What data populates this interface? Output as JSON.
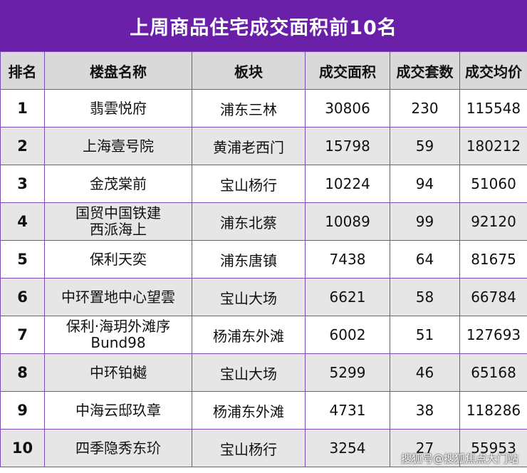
{
  "title": "上周商品住宅成交面积前10名",
  "headers": {
    "rank": "排名",
    "name": "楼盘名称",
    "area": "板块",
    "deal_area": "成交面积",
    "deal_units": "成交套数",
    "avg_price": "成交均价"
  },
  "rows": [
    {
      "rank": "1",
      "name": "翡雲悦府",
      "area": "浦东三林",
      "deal_area": "30806",
      "deal_units": "230",
      "avg_price": "115548"
    },
    {
      "rank": "2",
      "name": "上海壹号院",
      "area": "黄浦老西门",
      "deal_area": "15798",
      "deal_units": "59",
      "avg_price": "180212"
    },
    {
      "rank": "3",
      "name": "金茂棠前",
      "area": "宝山杨行",
      "deal_area": "10224",
      "deal_units": "94",
      "avg_price": "51060"
    },
    {
      "rank": "4",
      "name": "国贸中国铁建\n西派海上",
      "area": "浦东北蔡",
      "deal_area": "10089",
      "deal_units": "99",
      "avg_price": "92120"
    },
    {
      "rank": "5",
      "name": "保利天奕",
      "area": "浦东唐镇",
      "deal_area": "7438",
      "deal_units": "64",
      "avg_price": "81675"
    },
    {
      "rank": "6",
      "name": "中环置地中心望雲",
      "area": "宝山大场",
      "deal_area": "6621",
      "deal_units": "58",
      "avg_price": "66784"
    },
    {
      "rank": "7",
      "name": "保利·海玥外滩序\nBund98",
      "area": "杨浦东外滩",
      "deal_area": "6002",
      "deal_units": "51",
      "avg_price": "127693"
    },
    {
      "rank": "8",
      "name": "中环铂樾",
      "area": "宝山大场",
      "deal_area": "5299",
      "deal_units": "46",
      "avg_price": "65168"
    },
    {
      "rank": "9",
      "name": "中海云邸玖章",
      "area": "杨浦东外滩",
      "deal_area": "4731",
      "deal_units": "38",
      "avg_price": "118286"
    },
    {
      "rank": "10",
      "name": "四季隐秀东玠",
      "area": "宝山杨行",
      "deal_area": "3254",
      "deal_units": "27",
      "avg_price": "55953"
    }
  ],
  "watermark": "搜狐号@搜狐焦点大门站"
}
